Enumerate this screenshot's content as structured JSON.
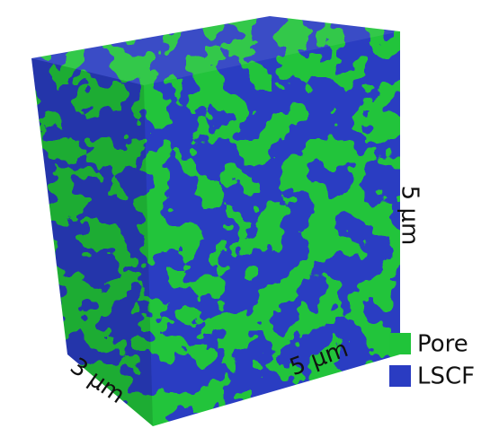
{
  "dimensions": {
    "depth": "3 μm",
    "width": "5 μm",
    "height": "5 μm"
  },
  "legend": [
    {
      "label": "Pore",
      "color": "#20c43a"
    },
    {
      "label": "LSCF",
      "color": "#2a3cc2"
    }
  ]
}
